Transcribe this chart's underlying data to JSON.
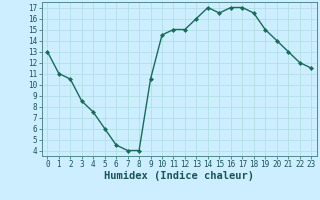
{
  "xlabel": "Humidex (Indice chaleur)",
  "x": [
    0,
    1,
    2,
    3,
    4,
    5,
    6,
    7,
    8,
    9,
    10,
    11,
    12,
    13,
    14,
    15,
    16,
    17,
    18,
    19,
    20,
    21,
    22,
    23
  ],
  "y": [
    13,
    11,
    10.5,
    8.5,
    7.5,
    6,
    4.5,
    4,
    4,
    10.5,
    14.5,
    15,
    15,
    16,
    17,
    16.5,
    17,
    17,
    16.5,
    15,
    14,
    13,
    12,
    11.5
  ],
  "line_color": "#1a6b5a",
  "marker": "D",
  "markersize": 2.0,
  "linewidth": 1.0,
  "bg_color": "#cceeff",
  "grid_color": "#aadddd",
  "ylim": [
    3.5,
    17.5
  ],
  "xlim": [
    -0.5,
    23.5
  ],
  "yticks": [
    4,
    5,
    6,
    7,
    8,
    9,
    10,
    11,
    12,
    13,
    14,
    15,
    16,
    17
  ],
  "xticks": [
    0,
    1,
    2,
    3,
    4,
    5,
    6,
    7,
    8,
    9,
    10,
    11,
    12,
    13,
    14,
    15,
    16,
    17,
    18,
    19,
    20,
    21,
    22,
    23
  ],
  "ytick_fontsize": 5.5,
  "xtick_fontsize": 5.5,
  "xlabel_fontsize": 7.5,
  "xlabel_fontweight": "bold"
}
